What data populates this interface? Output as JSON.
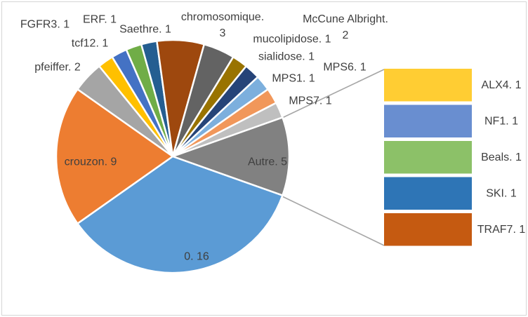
{
  "chart_data": {
    "type": "pie",
    "subtype": "bar-of-pie",
    "title": "",
    "legend_position": "none",
    "grid": false,
    "total": 46,
    "label_format": "{name}. {value}",
    "slices": [
      {
        "name": "0",
        "value": 16,
        "color": "#5B9BD5",
        "label": "0. 16"
      },
      {
        "name": "crouzon",
        "value": 9,
        "color": "#ED7D31",
        "label": "crouzon. 9"
      },
      {
        "name": "pfeiffer",
        "value": 2,
        "color": "#A5A5A5",
        "label": "pfeiffer. 2"
      },
      {
        "name": "FGFR3",
        "value": 1,
        "color": "#FFC000",
        "label": "FGFR3. 1"
      },
      {
        "name": "tcf12",
        "value": 1,
        "color": "#4472C4",
        "label": "tcf12. 1"
      },
      {
        "name": "ERF",
        "value": 1,
        "color": "#70AD47",
        "label": "ERF. 1"
      },
      {
        "name": "Saethre",
        "value": 1,
        "color": "#255E91",
        "label": "Saethre. 1"
      },
      {
        "name": "chromosomique",
        "value": 3,
        "color": "#9E480E",
        "label_lines": [
          "chromosomique.",
          "3"
        ]
      },
      {
        "name": "McCune Albright",
        "value": 2,
        "color": "#636363",
        "label_lines": [
          "McCune Albright.",
          "2"
        ]
      },
      {
        "name": "mucolipidose",
        "value": 1,
        "color": "#997300",
        "label": "mucolipidose. 1"
      },
      {
        "name": "sialidose",
        "value": 1,
        "color": "#264478",
        "label": "sialidose. 1"
      },
      {
        "name": "MPS6",
        "value": 1,
        "color": "#7CAFDD",
        "label": "MPS6. 1"
      },
      {
        "name": "MPS1",
        "value": 1,
        "color": "#F1975A",
        "label": "MPS1. 1"
      },
      {
        "name": "MPS7",
        "value": 1,
        "color": "#BFBFBF",
        "label": "MPS7. 1"
      },
      {
        "name": "Autre",
        "value": 5,
        "color": "#818181",
        "label": "Autre. 5"
      }
    ],
    "breakout_bar": {
      "source_slice": "Autre",
      "segments": [
        {
          "name": "ALX4",
          "value": 1,
          "color": "#FFCD33",
          "label": "ALX4. 1"
        },
        {
          "name": "NF1",
          "value": 1,
          "color": "#698ED0",
          "label": "NF1. 1"
        },
        {
          "name": "Beals",
          "value": 1,
          "color": "#8CC168",
          "label": "Beals. 1"
        },
        {
          "name": "SKI",
          "value": 1,
          "color": "#2E75B6",
          "label": "SKI. 1"
        },
        {
          "name": "TRAF7",
          "value": 1,
          "color": "#C55A11",
          "label": "TRAF7. 1"
        }
      ]
    },
    "colors": {
      "label_text": "#3F3F3F",
      "leader_line": "#A6A6A6",
      "slice_stroke": "#FFFFFF",
      "frame_border": "#D6D6D6",
      "background": "#FFFFFF"
    }
  }
}
